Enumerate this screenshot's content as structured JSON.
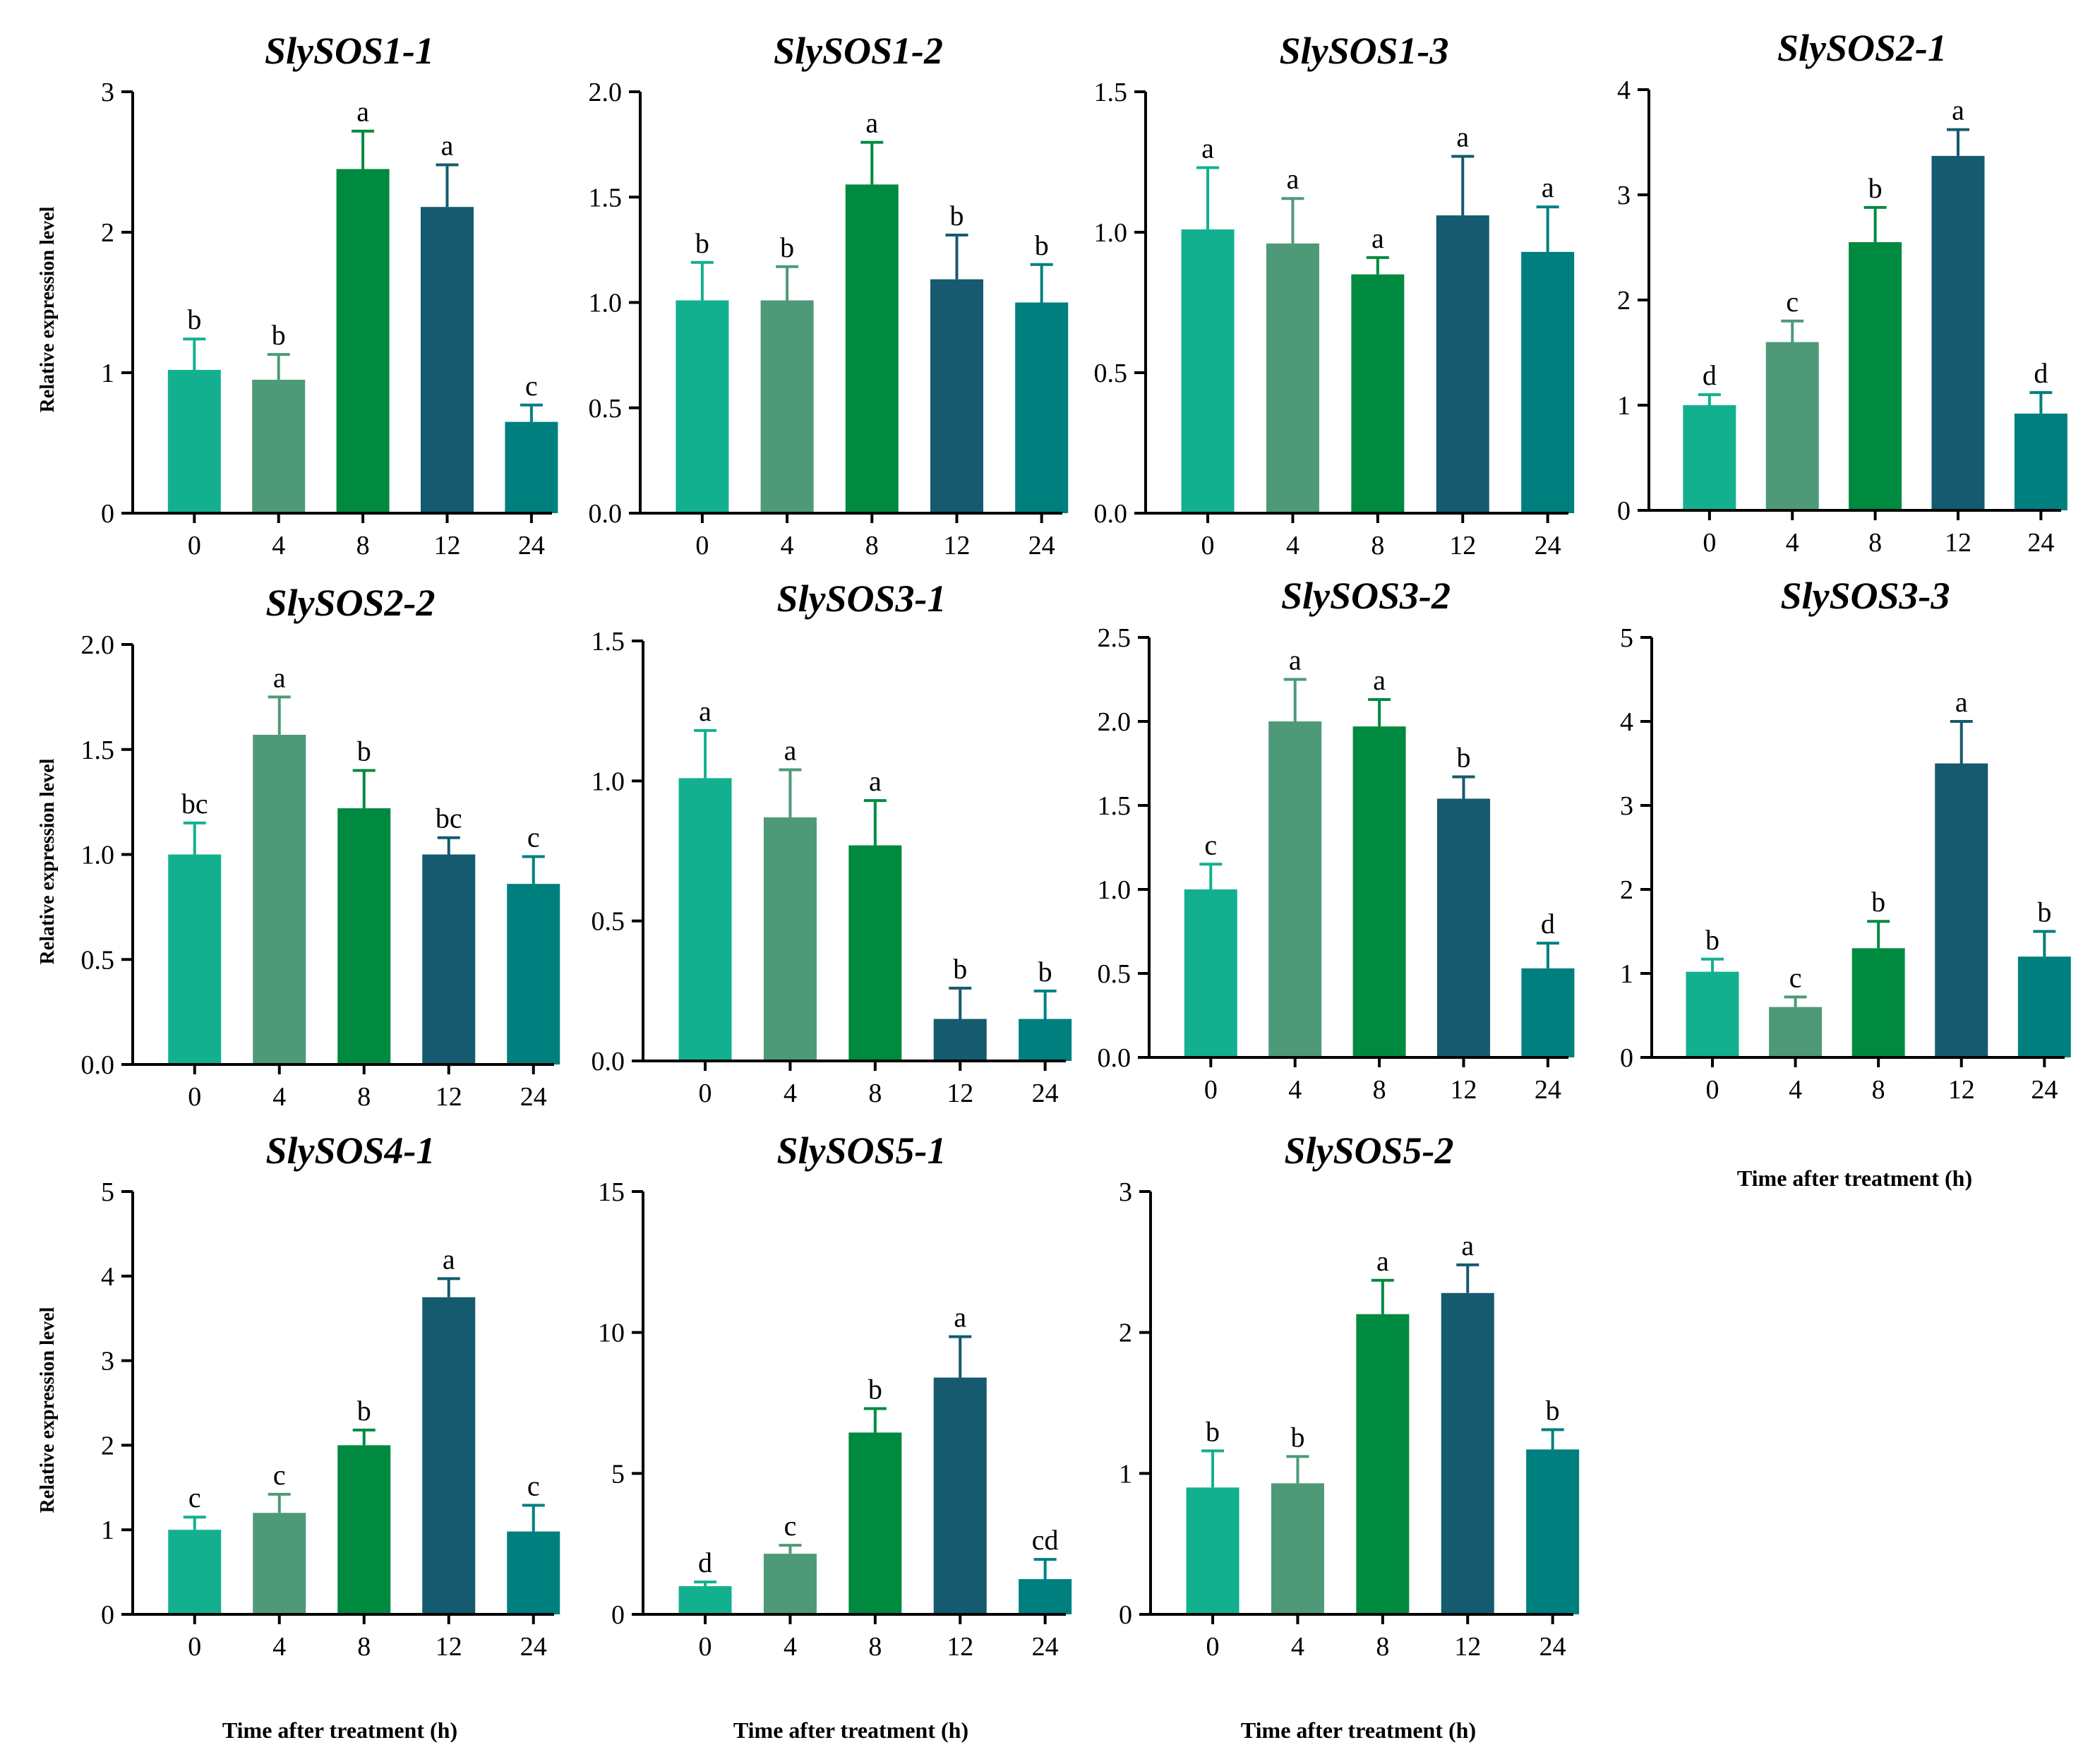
{
  "colors": [
    "#13b08f",
    "#4e9a78",
    "#008a3f",
    "#155a6e",
    "#007f7f"
  ],
  "x_axis_label": "Time after treatment (h)",
  "y_axis_label": "Relative expression level",
  "chart_data": [
    {
      "type": "bar",
      "title": "SlySOS1-1",
      "categories": [
        "0",
        "4",
        "8",
        "12",
        "24"
      ],
      "values": [
        1.02,
        0.95,
        2.45,
        2.18,
        0.65
      ],
      "errors": [
        0.22,
        0.18,
        0.27,
        0.3,
        0.12
      ],
      "letters": [
        "b",
        "b",
        "a",
        "a",
        "c"
      ],
      "ylim": [
        0,
        3
      ],
      "yticks": [
        "0",
        "1",
        "2",
        "3"
      ],
      "ylabel": "Relative expression level",
      "xlabel": ""
    },
    {
      "type": "bar",
      "title": "SlySOS1-2",
      "categories": [
        "0",
        "4",
        "8",
        "12",
        "24"
      ],
      "values": [
        1.01,
        1.01,
        1.56,
        1.11,
        1.0
      ],
      "errors": [
        0.18,
        0.16,
        0.2,
        0.21,
        0.18
      ],
      "letters": [
        "b",
        "b",
        "a",
        "b",
        "b"
      ],
      "ylim": [
        0,
        2
      ],
      "yticks": [
        "0.0",
        "0.5",
        "1.0",
        "1.5",
        "2.0"
      ],
      "ylabel": "",
      "xlabel": ""
    },
    {
      "type": "bar",
      "title": "SlySOS1-3",
      "categories": [
        "0",
        "4",
        "8",
        "12",
        "24"
      ],
      "values": [
        1.01,
        0.96,
        0.85,
        1.06,
        0.93
      ],
      "errors": [
        0.22,
        0.16,
        0.06,
        0.21,
        0.16
      ],
      "letters": [
        "a",
        "a",
        "a",
        "a",
        "a"
      ],
      "ylim": [
        0,
        1.5
      ],
      "yticks": [
        "0.0",
        "0.5",
        "1.0",
        "1.5"
      ],
      "ylabel": "",
      "xlabel": ""
    },
    {
      "type": "bar",
      "title": "SlySOS2-1",
      "categories": [
        "0",
        "4",
        "8",
        "12",
        "24"
      ],
      "values": [
        1.0,
        1.6,
        2.55,
        3.37,
        0.92
      ],
      "errors": [
        0.1,
        0.2,
        0.33,
        0.25,
        0.2
      ],
      "letters": [
        "d",
        "c",
        "b",
        "a",
        "d"
      ],
      "ylim": [
        0,
        4
      ],
      "yticks": [
        "0",
        "1",
        "2",
        "3",
        "4"
      ],
      "ylabel": "",
      "xlabel": ""
    },
    {
      "type": "bar",
      "title": "SlySOS2-2",
      "categories": [
        "0",
        "4",
        "8",
        "12",
        "24"
      ],
      "values": [
        1.0,
        1.57,
        1.22,
        1.0,
        0.86
      ],
      "errors": [
        0.15,
        0.18,
        0.18,
        0.08,
        0.13
      ],
      "letters": [
        "bc",
        "a",
        "b",
        "bc",
        "c"
      ],
      "ylim": [
        0,
        2
      ],
      "yticks": [
        "0.0",
        "0.5",
        "1.0",
        "1.5",
        "2.0"
      ],
      "ylabel": "Relative expression level",
      "xlabel": ""
    },
    {
      "type": "bar",
      "title": "SlySOS3-1",
      "categories": [
        "0",
        "4",
        "8",
        "12",
        "24"
      ],
      "values": [
        1.01,
        0.87,
        0.77,
        0.15,
        0.15
      ],
      "errors": [
        0.17,
        0.17,
        0.16,
        0.11,
        0.1
      ],
      "letters": [
        "a",
        "a",
        "a",
        "b",
        "b"
      ],
      "ylim": [
        0,
        1.5
      ],
      "yticks": [
        "0.0",
        "0.5",
        "1.0",
        "1.5"
      ],
      "ylabel": "",
      "xlabel": ""
    },
    {
      "type": "bar",
      "title": "SlySOS3-2",
      "categories": [
        "0",
        "4",
        "8",
        "12",
        "24"
      ],
      "values": [
        1.0,
        2.0,
        1.97,
        1.54,
        0.53
      ],
      "errors": [
        0.15,
        0.25,
        0.16,
        0.13,
        0.15
      ],
      "letters": [
        "c",
        "a",
        "a",
        "b",
        "d"
      ],
      "ylim": [
        0,
        2.5
      ],
      "yticks": [
        "0.0",
        "0.5",
        "1.0",
        "1.5",
        "2.0",
        "2.5"
      ],
      "ylabel": "",
      "xlabel": ""
    },
    {
      "type": "bar",
      "title": "SlySOS3-3",
      "categories": [
        "0",
        "4",
        "8",
        "12",
        "24"
      ],
      "values": [
        1.02,
        0.6,
        1.3,
        3.5,
        1.2
      ],
      "errors": [
        0.15,
        0.12,
        0.32,
        0.5,
        0.3
      ],
      "letters": [
        "b",
        "c",
        "b",
        "a",
        "b"
      ],
      "ylim": [
        0,
        5
      ],
      "yticks": [
        "0",
        "1",
        "2",
        "3",
        "4",
        "5"
      ],
      "ylabel": "",
      "xlabel": "Time after treatment (h)"
    },
    {
      "type": "bar",
      "title": "SlySOS4-1",
      "categories": [
        "0",
        "4",
        "8",
        "12",
        "24"
      ],
      "values": [
        1.0,
        1.2,
        2.0,
        3.75,
        0.98
      ],
      "errors": [
        0.15,
        0.22,
        0.18,
        0.22,
        0.31
      ],
      "letters": [
        "c",
        "c",
        "b",
        "a",
        "c"
      ],
      "ylim": [
        0,
        5
      ],
      "yticks": [
        "0",
        "1",
        "2",
        "3",
        "4",
        "5"
      ],
      "ylabel": "Relative expression level",
      "xlabel": "Time after treatment (h)"
    },
    {
      "type": "bar",
      "title": "SlySOS5-1",
      "categories": [
        "0",
        "4",
        "8",
        "12",
        "24"
      ],
      "values": [
        1.0,
        2.15,
        6.45,
        8.4,
        1.25
      ],
      "errors": [
        0.15,
        0.3,
        0.85,
        1.45,
        0.7
      ],
      "letters": [
        "d",
        "c",
        "b",
        "a",
        "cd"
      ],
      "ylim": [
        0,
        15
      ],
      "yticks": [
        "0",
        "5",
        "10",
        "15"
      ],
      "ylabel": "",
      "xlabel": "Time after treatment (h)"
    },
    {
      "type": "bar",
      "title": "SlySOS5-2",
      "categories": [
        "0",
        "4",
        "8",
        "12",
        "24"
      ],
      "values": [
        0.9,
        0.93,
        2.13,
        2.28,
        1.17
      ],
      "errors": [
        0.26,
        0.19,
        0.24,
        0.2,
        0.14
      ],
      "letters": [
        "b",
        "b",
        "a",
        "a",
        "b"
      ],
      "ylim": [
        0,
        3
      ],
      "yticks": [
        "0",
        "1",
        "2",
        "3"
      ],
      "ylabel": "",
      "xlabel": "Time after treatment (h)"
    }
  ]
}
